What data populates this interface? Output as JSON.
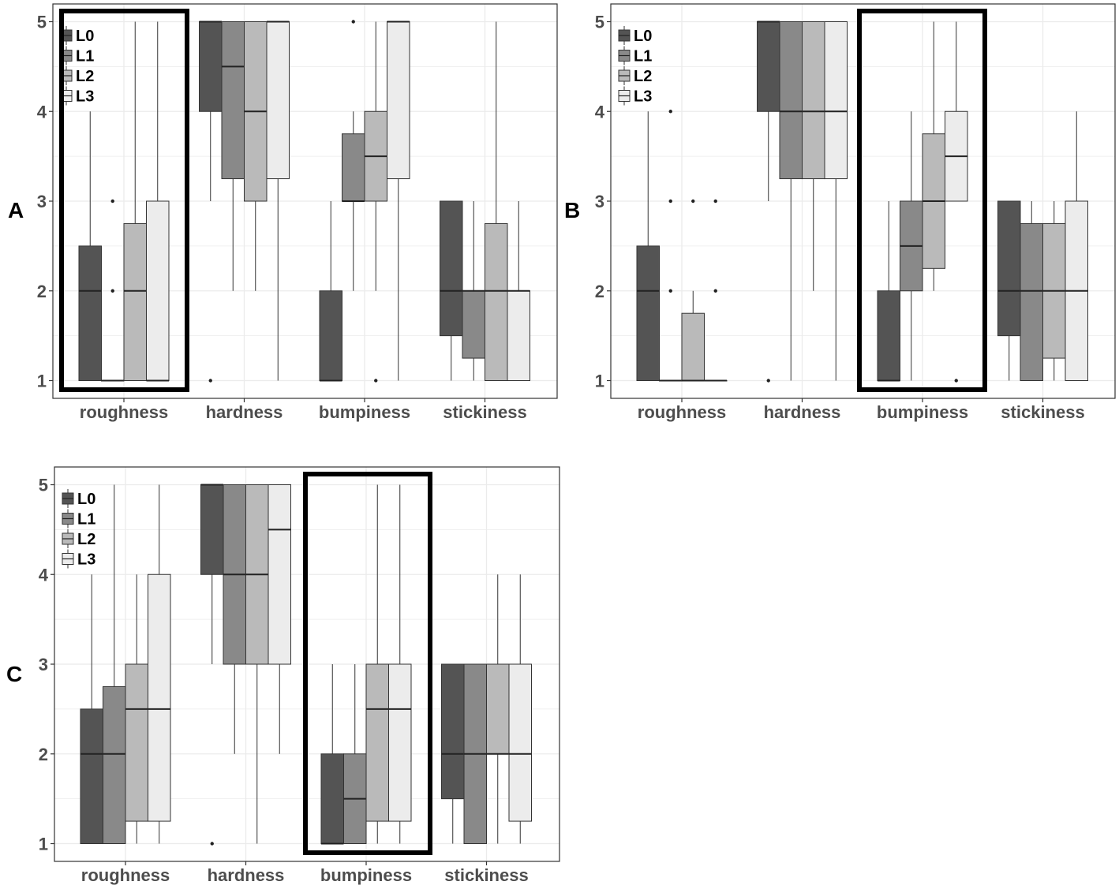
{
  "chart_data": [
    {
      "type": "boxplot",
      "panel_label": "A",
      "categories": [
        "roughness",
        "hardness",
        "bumpiness",
        "stickiness"
      ],
      "ylim": [
        1,
        5
      ],
      "yticks": [
        "1",
        "2",
        "3",
        "4",
        "5"
      ],
      "legend": [
        "L0",
        "L1",
        "L2",
        "L3"
      ],
      "highlight": "roughness",
      "boxes": [
        [
          {
            "q1": 1,
            "median": 2,
            "q3": 2.5,
            "whisker_low": 1,
            "whisker_high": 4,
            "outliers": []
          },
          {
            "q1": 1,
            "median": 1,
            "q3": 1,
            "whisker_low": 1,
            "whisker_high": 1,
            "outliers": [
              2,
              3
            ]
          },
          {
            "q1": 1,
            "median": 2,
            "q3": 2.75,
            "whisker_low": 1,
            "whisker_high": 5,
            "outliers": []
          },
          {
            "q1": 1,
            "median": 1,
            "q3": 3,
            "whisker_low": 1,
            "whisker_high": 5,
            "outliers": []
          }
        ],
        [
          {
            "q1": 4,
            "median": 5,
            "q3": 5,
            "whisker_low": 3,
            "whisker_high": 5,
            "outliers": [
              1
            ]
          },
          {
            "q1": 3.25,
            "median": 4.5,
            "q3": 5,
            "whisker_low": 2,
            "whisker_high": 5,
            "outliers": []
          },
          {
            "q1": 3,
            "median": 4,
            "q3": 5,
            "whisker_low": 2,
            "whisker_high": 5,
            "outliers": []
          },
          {
            "q1": 3.25,
            "median": 5,
            "q3": 5,
            "whisker_low": 1,
            "whisker_high": 5,
            "outliers": []
          }
        ],
        [
          {
            "q1": 1,
            "median": 1,
            "q3": 2,
            "whisker_low": 1,
            "whisker_high": 3,
            "outliers": []
          },
          {
            "q1": 3,
            "median": 3,
            "q3": 3.75,
            "whisker_low": 2,
            "whisker_high": 4,
            "outliers": [
              5
            ]
          },
          {
            "q1": 3,
            "median": 3.5,
            "q3": 4,
            "whisker_low": 2,
            "whisker_high": 5,
            "outliers": [
              1
            ]
          },
          {
            "q1": 3.25,
            "median": 5,
            "q3": 5,
            "whisker_low": 1,
            "whisker_high": 5,
            "outliers": []
          }
        ],
        [
          {
            "q1": 1.5,
            "median": 2,
            "q3": 3,
            "whisker_low": 1,
            "whisker_high": 3,
            "outliers": []
          },
          {
            "q1": 1.25,
            "median": 2,
            "q3": 2,
            "whisker_low": 1,
            "whisker_high": 3,
            "outliers": []
          },
          {
            "q1": 1,
            "median": 2,
            "q3": 2.75,
            "whisker_low": 1,
            "whisker_high": 5,
            "outliers": []
          },
          {
            "q1": 1,
            "median": 2,
            "q3": 2,
            "whisker_low": 1,
            "whisker_high": 3,
            "outliers": []
          }
        ]
      ]
    },
    {
      "type": "boxplot",
      "panel_label": "B",
      "categories": [
        "roughness",
        "hardness",
        "bumpiness",
        "stickiness"
      ],
      "ylim": [
        1,
        5
      ],
      "yticks": [
        "1",
        "2",
        "3",
        "4",
        "5"
      ],
      "legend": [
        "L0",
        "L1",
        "L2",
        "L3"
      ],
      "highlight": "bumpiness",
      "boxes": [
        [
          {
            "q1": 1,
            "median": 2,
            "q3": 2.5,
            "whisker_low": 1,
            "whisker_high": 4,
            "outliers": []
          },
          {
            "q1": 1,
            "median": 1,
            "q3": 1,
            "whisker_low": 1,
            "whisker_high": 1,
            "outliers": [
              2,
              3,
              4
            ]
          },
          {
            "q1": 1,
            "median": 1,
            "q3": 1.75,
            "whisker_low": 1,
            "whisker_high": 2,
            "outliers": [
              3
            ]
          },
          {
            "q1": 1,
            "median": 1,
            "q3": 1,
            "whisker_low": 1,
            "whisker_high": 1,
            "outliers": [
              2,
              3
            ]
          }
        ],
        [
          {
            "q1": 4,
            "median": 5,
            "q3": 5,
            "whisker_low": 3,
            "whisker_high": 5,
            "outliers": [
              1
            ]
          },
          {
            "q1": 3.25,
            "median": 4,
            "q3": 5,
            "whisker_low": 1,
            "whisker_high": 5,
            "outliers": []
          },
          {
            "q1": 3.25,
            "median": 4,
            "q3": 5,
            "whisker_low": 2,
            "whisker_high": 5,
            "outliers": []
          },
          {
            "q1": 3.25,
            "median": 4,
            "q3": 5,
            "whisker_low": 1,
            "whisker_high": 5,
            "outliers": []
          }
        ],
        [
          {
            "q1": 1,
            "median": 1,
            "q3": 2,
            "whisker_low": 1,
            "whisker_high": 3,
            "outliers": []
          },
          {
            "q1": 2,
            "median": 2.5,
            "q3": 3,
            "whisker_low": 1,
            "whisker_high": 4,
            "outliers": []
          },
          {
            "q1": 2.25,
            "median": 3,
            "q3": 3.75,
            "whisker_low": 2,
            "whisker_high": 5,
            "outliers": []
          },
          {
            "q1": 3,
            "median": 3.5,
            "q3": 4,
            "whisker_low": 3,
            "whisker_high": 5,
            "outliers": [
              1
            ]
          }
        ],
        [
          {
            "q1": 1.5,
            "median": 2,
            "q3": 3,
            "whisker_low": 1,
            "whisker_high": 3,
            "outliers": []
          },
          {
            "q1": 1,
            "median": 2,
            "q3": 2.75,
            "whisker_low": 1,
            "whisker_high": 3,
            "outliers": []
          },
          {
            "q1": 1.25,
            "median": 2,
            "q3": 2.75,
            "whisker_low": 1,
            "whisker_high": 3,
            "outliers": []
          },
          {
            "q1": 1,
            "median": 2,
            "q3": 3,
            "whisker_low": 1,
            "whisker_high": 4,
            "outliers": []
          }
        ]
      ]
    },
    {
      "type": "boxplot",
      "panel_label": "C",
      "categories": [
        "roughness",
        "hardness",
        "bumpiness",
        "stickiness"
      ],
      "ylim": [
        1,
        5
      ],
      "yticks": [
        "1",
        "2",
        "3",
        "4",
        "5"
      ],
      "legend": [
        "L0",
        "L1",
        "L2",
        "L3"
      ],
      "highlight": "bumpiness",
      "boxes": [
        [
          {
            "q1": 1,
            "median": 2,
            "q3": 2.5,
            "whisker_low": 1,
            "whisker_high": 4,
            "outliers": []
          },
          {
            "q1": 1,
            "median": 2,
            "q3": 2.75,
            "whisker_low": 1,
            "whisker_high": 5,
            "outliers": []
          },
          {
            "q1": 1.25,
            "median": 2.5,
            "q3": 3,
            "whisker_low": 1,
            "whisker_high": 4,
            "outliers": []
          },
          {
            "q1": 1.25,
            "median": 2.5,
            "q3": 4,
            "whisker_low": 1,
            "whisker_high": 5,
            "outliers": []
          }
        ],
        [
          {
            "q1": 4,
            "median": 5,
            "q3": 5,
            "whisker_low": 3,
            "whisker_high": 5,
            "outliers": [
              1
            ]
          },
          {
            "q1": 3,
            "median": 4,
            "q3": 5,
            "whisker_low": 2,
            "whisker_high": 5,
            "outliers": []
          },
          {
            "q1": 3,
            "median": 4,
            "q3": 5,
            "whisker_low": 1,
            "whisker_high": 5,
            "outliers": []
          },
          {
            "q1": 3,
            "median": 4.5,
            "q3": 5,
            "whisker_low": 2,
            "whisker_high": 5,
            "outliers": []
          }
        ],
        [
          {
            "q1": 1,
            "median": 1,
            "q3": 2,
            "whisker_low": 1,
            "whisker_high": 3,
            "outliers": []
          },
          {
            "q1": 1,
            "median": 1.5,
            "q3": 2,
            "whisker_low": 1,
            "whisker_high": 3,
            "outliers": []
          },
          {
            "q1": 1.25,
            "median": 2.5,
            "q3": 3,
            "whisker_low": 1,
            "whisker_high": 5,
            "outliers": []
          },
          {
            "q1": 1.25,
            "median": 2.5,
            "q3": 3,
            "whisker_low": 1,
            "whisker_high": 5,
            "outliers": []
          }
        ],
        [
          {
            "q1": 1.5,
            "median": 2,
            "q3": 3,
            "whisker_low": 1,
            "whisker_high": 3,
            "outliers": []
          },
          {
            "q1": 1,
            "median": 2,
            "q3": 3,
            "whisker_low": 1,
            "whisker_high": 3,
            "outliers": []
          },
          {
            "q1": 2,
            "median": 2,
            "q3": 3,
            "whisker_low": 1,
            "whisker_high": 4,
            "outliers": []
          },
          {
            "q1": 1.25,
            "median": 2,
            "q3": 3,
            "whisker_low": 1,
            "whisker_high": 4,
            "outliers": []
          }
        ]
      ]
    }
  ],
  "colors": {
    "fills": [
      "#545454",
      "#898989",
      "#bababa",
      "#ececec"
    ],
    "outline": "#333333",
    "grid": "#ebebeb",
    "panel_border": "#333333",
    "highlight": "#000000",
    "tick_text": "#4d4d4d"
  }
}
